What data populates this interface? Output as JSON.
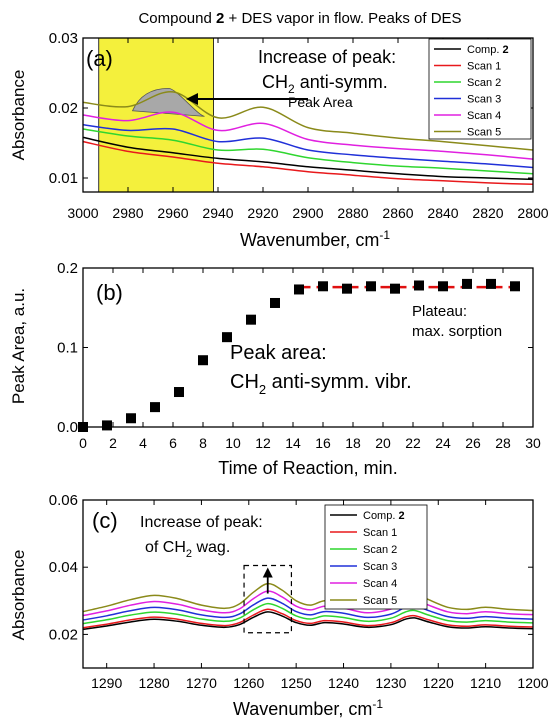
{
  "figure_title": "Compound 2 + DES vapor in flow. Peaks of DES",
  "colors": {
    "comp2": "#000000",
    "scan1": "#e8191c",
    "scan2": "#2fd62f",
    "scan3": "#2030d8",
    "scan4": "#e020e0",
    "scan5": "#8a8a1a",
    "highlight": "#f4f03c",
    "peak_fill": "#a8a8a8",
    "marker": "#000000",
    "plateau_line": "#e01010"
  },
  "chart_data": [
    {
      "id": "a",
      "panel_label": "(a)",
      "type": "line",
      "xlabel": "Wavenumber, cm",
      "xlabel_sup": "-1",
      "ylabel": "Absorbance",
      "x_reversed": true,
      "xlim": [
        3000,
        2800
      ],
      "ylim": [
        0.008,
        0.03
      ],
      "xticks": [
        3000,
        2980,
        2960,
        2940,
        2920,
        2900,
        2880,
        2860,
        2840,
        2820,
        2800
      ],
      "yticks": [
        0.01,
        0.02,
        0.03
      ],
      "ytick_labels": [
        "0.01",
        "0.02",
        "0.03"
      ],
      "highlight_range": [
        2993,
        2942
      ],
      "annotation": {
        "line1": "Increase of peak:",
        "line2_main": "CH",
        "line2_sub": "2",
        "line2_rest": " anti-symm.",
        "arrow_label": "Peak Area"
      },
      "legend_position": "top-right",
      "series": [
        {
          "name": "Comp.",
          "name_bold": "2",
          "color_key": "comp2",
          "x": [
            3000,
            2980,
            2960,
            2940,
            2920,
            2900,
            2880,
            2860,
            2840,
            2820,
            2800
          ],
          "y": [
            0.0158,
            0.0144,
            0.0136,
            0.0128,
            0.0123,
            0.0116,
            0.0111,
            0.0106,
            0.0102,
            0.01,
            0.0098
          ]
        },
        {
          "name": "Scan 1",
          "color_key": "scan1",
          "x": [
            3000,
            2980,
            2960,
            2940,
            2920,
            2900,
            2880,
            2860,
            2840,
            2820,
            2800
          ],
          "y": [
            0.0152,
            0.0138,
            0.013,
            0.0121,
            0.0116,
            0.0109,
            0.0104,
            0.0099,
            0.0096,
            0.0093,
            0.0091
          ]
        },
        {
          "name": "Scan 2",
          "color_key": "scan2",
          "x": [
            3000,
            2980,
            2960,
            2940,
            2920,
            2900,
            2880,
            2860,
            2840,
            2820,
            2800
          ],
          "y": [
            0.017,
            0.016,
            0.0154,
            0.014,
            0.0141,
            0.0129,
            0.0122,
            0.0117,
            0.0114,
            0.011,
            0.0106
          ]
        },
        {
          "name": "Scan 3",
          "color_key": "scan3",
          "x": [
            3000,
            2980,
            2960,
            2940,
            2920,
            2900,
            2880,
            2860,
            2840,
            2820,
            2800
          ],
          "y": [
            0.0176,
            0.0168,
            0.017,
            0.0152,
            0.0157,
            0.014,
            0.0133,
            0.0128,
            0.0124,
            0.012,
            0.0115
          ]
        },
        {
          "name": "Scan 4",
          "color_key": "scan4",
          "x": [
            3000,
            2980,
            2960,
            2940,
            2920,
            2900,
            2880,
            2860,
            2840,
            2820,
            2800
          ],
          "y": [
            0.019,
            0.0182,
            0.0194,
            0.0168,
            0.0178,
            0.0155,
            0.0147,
            0.0142,
            0.0138,
            0.0133,
            0.0127
          ]
        },
        {
          "name": "Scan 5",
          "color_key": "scan5",
          "x": [
            3000,
            2980,
            2960,
            2940,
            2920,
            2900,
            2880,
            2860,
            2840,
            2820,
            2800
          ],
          "y": [
            0.0208,
            0.0202,
            0.0223,
            0.0186,
            0.0201,
            0.0172,
            0.0164,
            0.0157,
            0.0152,
            0.0146,
            0.014
          ]
        }
      ]
    },
    {
      "id": "b",
      "panel_label": "(b)",
      "type": "scatter",
      "xlabel": "Time of Reaction, min.",
      "ylabel": "Peak Area, a.u.",
      "xlim": [
        0,
        30
      ],
      "ylim": [
        0,
        0.2
      ],
      "xticks": [
        0,
        2,
        4,
        6,
        8,
        10,
        12,
        14,
        16,
        18,
        20,
        22,
        24,
        26,
        28,
        30
      ],
      "yticks": [
        0,
        0.1,
        0.2
      ],
      "ytick_labels": [
        "0.0",
        "0.1",
        "0.2"
      ],
      "annotation": {
        "plateau_line1": "Plateau:",
        "plateau_line2": "max. sorption",
        "text_line1": "Peak area:",
        "text_line2_main": "CH",
        "text_line2_sub": "2",
        "text_line2_rest": " anti-symm. vibr."
      },
      "plateau_value": 0.176,
      "plateau_x": [
        14.5,
        29
      ],
      "x": [
        0,
        1.6,
        3.2,
        4.8,
        6.4,
        8.0,
        9.6,
        11.2,
        12.8,
        14.4,
        16.0,
        17.6,
        19.2,
        20.8,
        22.4,
        24.0,
        25.6,
        27.2,
        28.8
      ],
      "y": [
        0.0,
        0.002,
        0.011,
        0.025,
        0.044,
        0.084,
        0.113,
        0.135,
        0.156,
        0.173,
        0.177,
        0.174,
        0.177,
        0.174,
        0.178,
        0.177,
        0.18,
        0.18,
        0.177
      ]
    },
    {
      "id": "c",
      "panel_label": "(c)",
      "type": "line",
      "xlabel": "Wavenumber, cm",
      "xlabel_sup": "-1",
      "ylabel": "Absorbance",
      "x_reversed": true,
      "xlim": [
        1295,
        1200
      ],
      "ylim": [
        0.01,
        0.06
      ],
      "xticks": [
        1290,
        1280,
        1270,
        1260,
        1250,
        1240,
        1230,
        1220,
        1210,
        1200
      ],
      "yticks": [
        0.02,
        0.04,
        0.06
      ],
      "ytick_labels": [
        "0.02",
        "0.04",
        "0.06"
      ],
      "dashed_box_x": [
        1261,
        1251
      ],
      "dashed_box_y": [
        0.0205,
        0.0405
      ],
      "annotation": {
        "line1": "Increase of peak:",
        "line2_pre": "of CH",
        "line2_sub": "2",
        "line2_rest": " wag."
      },
      "legend_position": "top-right",
      "series": [
        {
          "name": "Comp.",
          "name_bold": "2",
          "color_key": "comp2",
          "base": 0.0215,
          "amp": 1.0
        },
        {
          "name": "Scan 1",
          "color_key": "scan1",
          "base": 0.022,
          "amp": 1.05
        },
        {
          "name": "Scan 2",
          "color_key": "scan2",
          "base": 0.0232,
          "amp": 1.15
        },
        {
          "name": "Scan 3",
          "color_key": "scan3",
          "base": 0.0243,
          "amp": 1.25
        },
        {
          "name": "Scan 4",
          "color_key": "scan4",
          "base": 0.0256,
          "amp": 1.4
        },
        {
          "name": "Scan 5",
          "color_key": "scan5",
          "base": 0.0268,
          "amp": 1.6
        }
      ],
      "x": [
        1295,
        1290,
        1285,
        1280,
        1275,
        1270,
        1265,
        1262,
        1259,
        1256,
        1253,
        1250,
        1247,
        1244,
        1240,
        1235,
        1230,
        1227,
        1225,
        1222,
        1218,
        1214,
        1210,
        1205,
        1200
      ],
      "shape": [
        0.0,
        0.001,
        0.0022,
        0.003,
        0.0024,
        0.0012,
        0.0006,
        0.0014,
        0.0036,
        0.0052,
        0.004,
        0.002,
        0.0012,
        0.002,
        0.0016,
        0.0006,
        0.0014,
        0.003,
        0.0034,
        0.0022,
        0.0008,
        0.0004,
        0.0008,
        0.0004,
        0.0002
      ]
    }
  ]
}
